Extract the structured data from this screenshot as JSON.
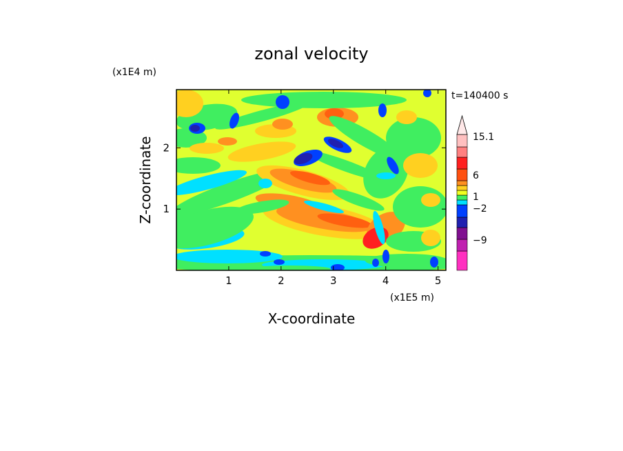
{
  "chart_data": {
    "type": "heatmap",
    "title": "zonal velocity",
    "xlabel": "X-coordinate",
    "ylabel": "Z-coordinate",
    "x_multiplier": "(x1E5 m)",
    "y_multiplier": "(x1E4 m)",
    "time_label": "t=140400 s",
    "xlim": [
      0,
      5.15
    ],
    "ylim": [
      0,
      2.95
    ],
    "x_ticks": [
      "1",
      "2",
      "3",
      "4",
      "5"
    ],
    "y_ticks": [
      "1",
      "2"
    ],
    "colorbar": {
      "labeled_levels": [
        "15.1",
        "6",
        "1",
        "−2",
        "−9"
      ],
      "colors": [
        "#ff30c0",
        "#c020b0",
        "#801090",
        "#2020b0",
        "#0040ff",
        "#00e0ff",
        "#40ee60",
        "#f0ff20",
        "#ffd020",
        "#ff9020",
        "#ff5010",
        "#ff2020",
        "#ff8080",
        "#ffc0c0"
      ],
      "extend": "max"
    },
    "fields": {
      "background": "#e0ff30",
      "regions_note": "contour bands approximated"
    }
  }
}
